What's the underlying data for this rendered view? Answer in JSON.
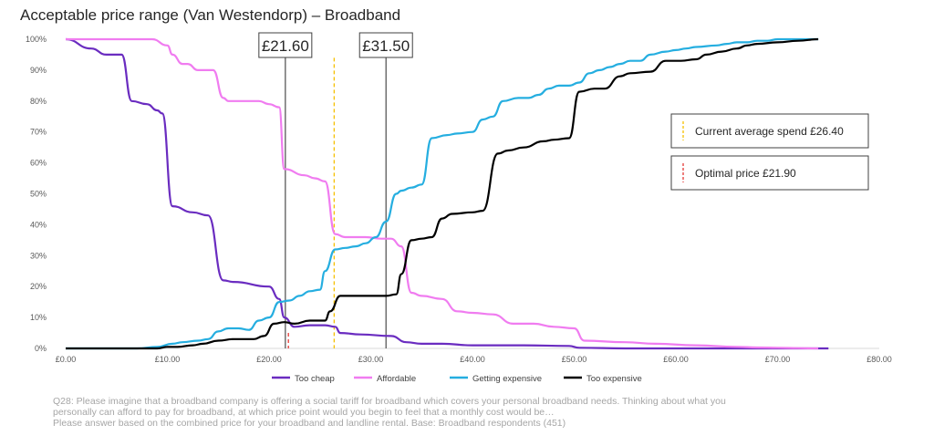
{
  "title": "Acceptable price range (Van Westendorp) – Broadband",
  "footnote": [
    "Q28: Please imagine that a broadband company is offering a social tariff for broadband which covers your personal broadband needs. Thinking about what you",
    "personally can afford to pay for broadband, at which price point would you begin to feel that a monthly cost would be…",
    "Please answer based on the combined price for your broadband and landline rental. Base: Broadband respondents (451)"
  ],
  "colors": {
    "too_cheap": "#6a2cc0",
    "affordable": "#f07cf0",
    "getting_expensive": "#25aee0",
    "too_expensive": "#000000",
    "current_spend_line": "#f5c000",
    "optimal_price_line": "#e53935"
  },
  "chart_data": {
    "type": "line",
    "title": "Acceptable price range (Van Westendorp) – Broadband",
    "xlim": [
      0,
      80
    ],
    "ylim": [
      0,
      100
    ],
    "x_ticks": [
      "£0.00",
      "£10.00",
      "£20.00",
      "£30.00",
      "£40.00",
      "£50.00",
      "£60.00",
      "£70.00",
      "£80.00"
    ],
    "y_ticks": [
      "0%",
      "10%",
      "20%",
      "30%",
      "40%",
      "50%",
      "60%",
      "70%",
      "80%",
      "90%",
      "100%"
    ],
    "grid": false,
    "legend_position": "bottom",
    "series": [
      {
        "name": "Too cheap",
        "key": "too_cheap",
        "x": [
          0,
          2.5,
          4,
          5.5,
          6.5,
          8,
          9,
          9.5,
          10.5,
          12.5,
          14,
          15.5,
          16.5,
          20,
          21,
          21.5,
          22.5,
          24,
          25.5,
          26.5,
          27,
          29,
          32,
          33.5,
          35,
          37,
          40,
          42,
          45,
          49.5,
          50.5,
          55,
          60,
          65,
          70,
          75
        ],
        "y": [
          100,
          97,
          95,
          95,
          80,
          79,
          77,
          76,
          46,
          44,
          43,
          22,
          21.5,
          20,
          16,
          10,
          7,
          7.5,
          7.5,
          7,
          5,
          4.5,
          4,
          2,
          1.5,
          1.5,
          1,
          1,
          1,
          0.8,
          0.2,
          0,
          0,
          0,
          0,
          0
        ]
      },
      {
        "name": "Affordable",
        "key": "affordable",
        "x": [
          0,
          4,
          8.5,
          10,
          10.5,
          11.5,
          12,
          13,
          14.5,
          15.5,
          16,
          19,
          20,
          21,
          21.5,
          23.5,
          24.5,
          25.5,
          26.5,
          27.5,
          29.5,
          31,
          32,
          33,
          34,
          35,
          37,
          38.5,
          40,
          42,
          44,
          46,
          48,
          50,
          51,
          55,
          58,
          62,
          66,
          68,
          70,
          72,
          74
        ],
        "y": [
          100,
          100,
          100,
          98,
          95,
          92,
          92,
          90,
          90,
          81,
          80,
          80,
          79,
          78,
          58,
          56,
          55,
          54,
          37,
          36,
          36,
          35.5,
          35.5,
          33,
          18,
          17,
          16,
          12,
          11.5,
          11,
          8,
          8,
          7,
          6.5,
          2.5,
          2,
          1.5,
          1,
          0.5,
          0.3,
          0.2,
          0.1,
          0
        ]
      },
      {
        "name": "Getting expensive",
        "key": "getting_expensive",
        "x": [
          0,
          5,
          7,
          9,
          10.5,
          11.5,
          13,
          14,
          15,
          16,
          17,
          18,
          19,
          20,
          21,
          22,
          23,
          24,
          25,
          25.5,
          26.5,
          27.5,
          28.5,
          29.5,
          30.5,
          31.5,
          32.5,
          33,
          34,
          35,
          36,
          37.5,
          38.5,
          40,
          41,
          42,
          43,
          44.5,
          45.5,
          46.5,
          47.5,
          48.5,
          49.5,
          50.5,
          51.5,
          52.5,
          53.5,
          54.5,
          55.5,
          56.5,
          57.5,
          59,
          60,
          61,
          62,
          64,
          65,
          66,
          67,
          68,
          69,
          70,
          71,
          72,
          74
        ],
        "y": [
          0,
          0,
          0,
          0.5,
          1.5,
          2,
          2.5,
          3,
          5.5,
          6.5,
          6.5,
          6,
          9,
          10,
          15,
          15.5,
          17,
          18.5,
          19,
          25,
          32,
          32.5,
          33,
          34,
          36,
          41,
          50,
          51,
          52,
          53,
          68,
          69,
          69.5,
          70,
          74,
          75,
          80,
          81,
          81,
          82,
          84,
          85,
          85,
          86,
          89,
          90,
          91,
          92,
          93,
          93,
          95,
          96,
          96.5,
          97,
          97.5,
          98,
          98.5,
          99,
          99,
          99.5,
          99.5,
          100,
          100,
          100,
          100
        ]
      },
      {
        "name": "Too expensive",
        "key": "too_expensive",
        "x": [
          0,
          9,
          10,
          11,
          12.5,
          13.5,
          15,
          16.5,
          18.5,
          19.5,
          20.5,
          21.5,
          22.5,
          24,
          25.5,
          26,
          27,
          29,
          30.5,
          31.5,
          32.5,
          33,
          34,
          35,
          36,
          37,
          38,
          40,
          41,
          42.5,
          43.5,
          45,
          47,
          48,
          49.5,
          50.5,
          52,
          53,
          54.5,
          55.5,
          57.5,
          59,
          60.5,
          62,
          63,
          64.5,
          66,
          67,
          68,
          70,
          72,
          74
        ],
        "y": [
          0,
          0,
          0.5,
          0.5,
          1,
          1.5,
          2.5,
          3,
          3,
          4,
          8,
          8.5,
          8,
          9,
          9,
          12,
          17,
          17,
          17,
          17,
          17.5,
          24,
          35,
          35.5,
          36,
          42,
          43.5,
          44,
          44.5,
          63,
          64,
          65,
          67,
          67.5,
          68,
          83,
          84,
          84,
          88,
          89,
          89.5,
          93,
          93,
          93.5,
          95,
          96,
          97,
          98,
          98.5,
          99,
          99.5,
          100
        ]
      }
    ],
    "reference_lines": [
      {
        "x": 21.6,
        "label": "£21.60",
        "style": "solid",
        "color_key": "callout"
      },
      {
        "x": 31.5,
        "label": "£31.50",
        "style": "solid",
        "color_key": "callout"
      },
      {
        "x": 26.4,
        "label": "Current average spend £26.40",
        "style": "dashed",
        "color_key": "current_spend_line"
      },
      {
        "x": 21.9,
        "label": "Optimal price £21.90",
        "style": "dashed",
        "color_key": "optimal_price_line",
        "ymax": 5
      }
    ],
    "callouts": [
      "£21.60",
      "£31.50"
    ],
    "annotation_boxes": [
      "Current average spend £26.40",
      "Optimal price £21.90"
    ]
  }
}
